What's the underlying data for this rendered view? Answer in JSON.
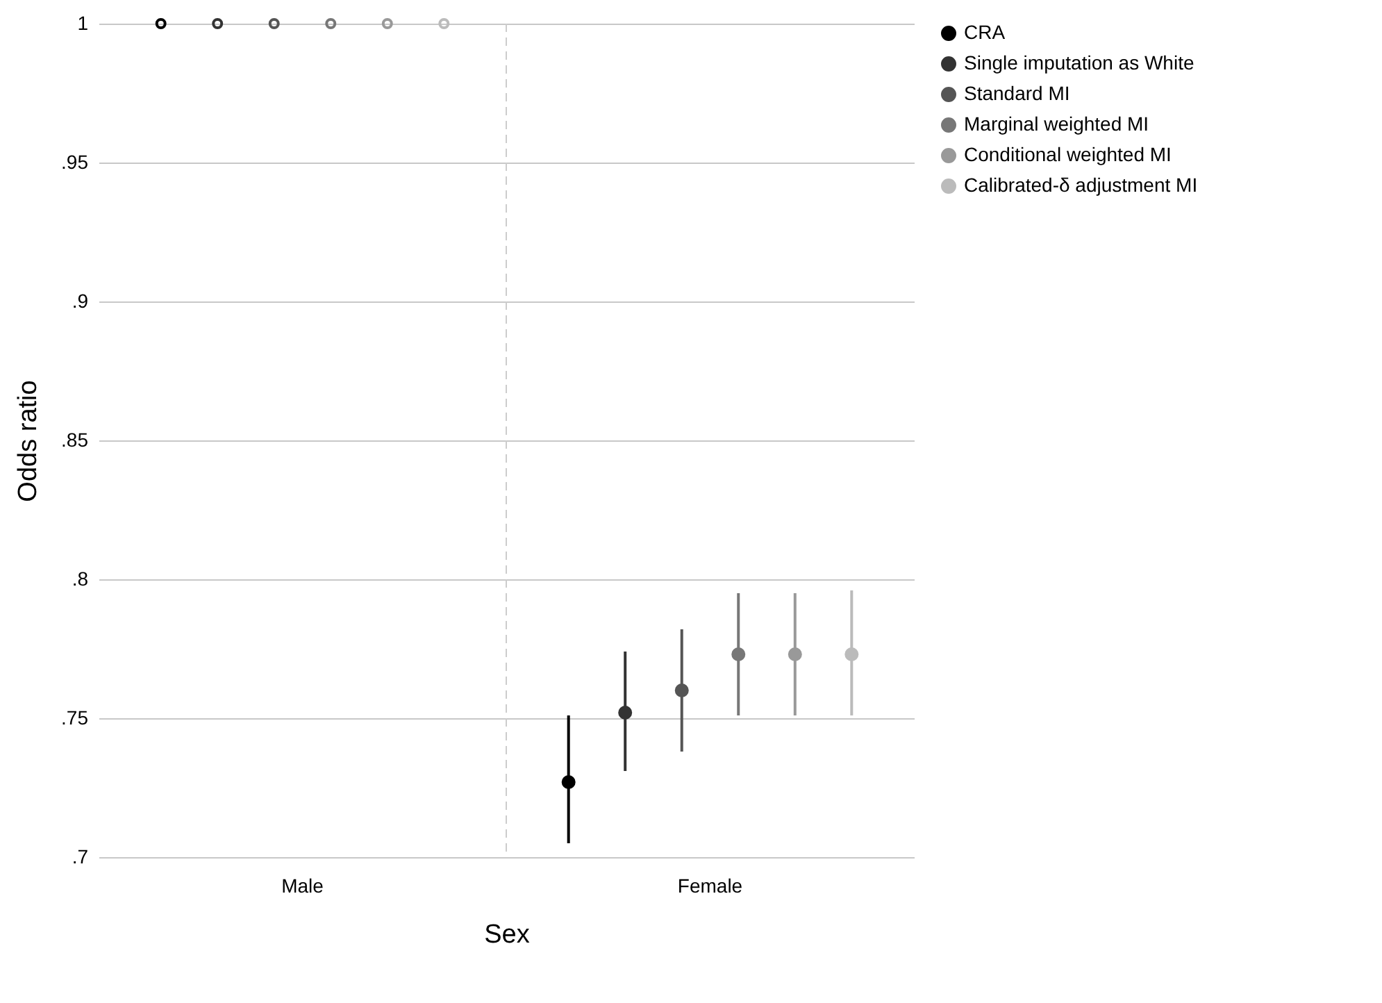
{
  "chart_data": {
    "type": "scatter",
    "xlabel": "Sex",
    "ylabel": "Odds ratio",
    "categories": [
      "Male",
      "Female"
    ],
    "ylim": [
      0.7,
      1
    ],
    "yticks": [
      {
        "value": 0.7,
        "label": ".7"
      },
      {
        "value": 0.75,
        "label": ".75"
      },
      {
        "value": 0.8,
        "label": ".8"
      },
      {
        "value": 0.85,
        "label": ".85"
      },
      {
        "value": 0.9,
        "label": ".9"
      },
      {
        "value": 0.95,
        "label": ".95"
      },
      1
    ],
    "grid": "y",
    "legend": "right",
    "marker": "circle",
    "ref_lines": [
      {
        "axis": "x",
        "value": "Female",
        "line_style": "dashed",
        "color": "#cccccc"
      }
    ],
    "series": [
      {
        "name": "CRA",
        "color": "#000000",
        "values": [
          1,
          0.727
        ],
        "errors": [
          null,
          [
            0.705,
            0.751
          ]
        ]
      },
      {
        "name": "Single imputation as White",
        "color": "#333333",
        "values": [
          1,
          0.752
        ],
        "errors": [
          null,
          [
            0.731,
            0.774
          ]
        ]
      },
      {
        "name": "Standard MI",
        "color": "#555555",
        "values": [
          1,
          0.76
        ],
        "errors": [
          null,
          [
            0.738,
            0.782
          ]
        ]
      },
      {
        "name": "Marginal weighted MI",
        "color": "#777777",
        "values": [
          1,
          0.773
        ],
        "errors": [
          null,
          [
            0.751,
            0.795
          ]
        ]
      },
      {
        "name": "Conditional weighted MI",
        "color": "#999999",
        "values": [
          1,
          0.773
        ],
        "errors": [
          null,
          [
            0.751,
            0.795
          ]
        ]
      },
      {
        "name": "Calibrated-δ adjustment MI",
        "color": "#bbbbbb",
        "values": [
          1,
          0.773
        ],
        "errors": [
          null,
          [
            0.751,
            0.796
          ]
        ]
      }
    ]
  }
}
